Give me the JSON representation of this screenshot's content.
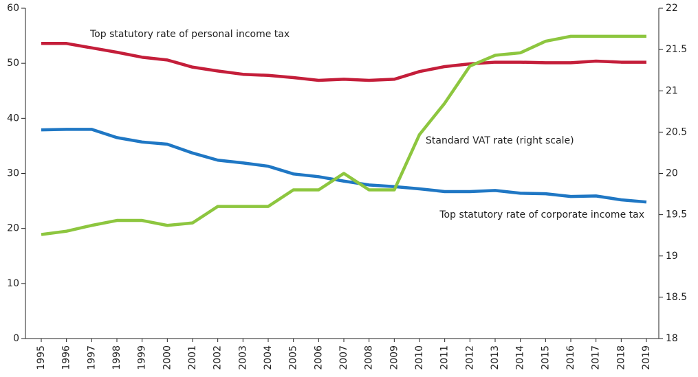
{
  "chart_data": {
    "type": "line",
    "categories": [
      "1995",
      "1996",
      "1997",
      "1998",
      "1999",
      "2000",
      "2001",
      "2002",
      "2003",
      "2004",
      "2005",
      "2006",
      "2007",
      "2008",
      "2009",
      "2010",
      "2011",
      "2012",
      "2013",
      "2014",
      "2015",
      "2016",
      "2017",
      "2018",
      "2019"
    ],
    "series": [
      {
        "name": "Top statutory rate of personal income tax",
        "color": "#c41e3a",
        "values": [
          53.6,
          53.6,
          52.8,
          52.0,
          51.1,
          50.6,
          49.3,
          48.6,
          48.0,
          47.8,
          47.4,
          46.9,
          47.1,
          46.9,
          47.1,
          48.5,
          49.4,
          49.9,
          50.2,
          50.2,
          50.1,
          50.1,
          50.4,
          50.2,
          50.2
        ]
      },
      {
        "name": "Top statutory rate of corporate income tax",
        "color": "#1f77c4",
        "values": [
          37.9,
          38.0,
          38.0,
          36.5,
          35.7,
          35.3,
          33.7,
          32.4,
          31.9,
          31.3,
          29.9,
          29.4,
          28.6,
          27.9,
          27.6,
          27.2,
          26.7,
          26.7,
          26.9,
          26.4,
          26.3,
          25.8,
          25.9,
          25.2,
          24.8
        ]
      },
      {
        "name": "Standard VAT rate (right scale)",
        "color": "#8dc63f",
        "axis": "y2",
        "values": [
          19.26,
          19.3,
          19.37,
          19.43,
          19.43,
          19.37,
          19.4,
          19.6,
          19.6,
          19.6,
          19.8,
          19.8,
          20.0,
          19.8,
          19.8,
          20.47,
          20.85,
          21.3,
          21.43,
          21.46,
          21.6,
          21.66,
          21.66,
          21.66,
          21.66
        ]
      }
    ],
    "ylim": [
      0,
      60
    ],
    "yticks": [
      0,
      10,
      20,
      30,
      40,
      50,
      60
    ],
    "y2lim": [
      18,
      22
    ],
    "y2ticks": [
      18,
      18.5,
      19,
      19.5,
      20,
      20.5,
      21,
      21.5,
      22
    ]
  }
}
